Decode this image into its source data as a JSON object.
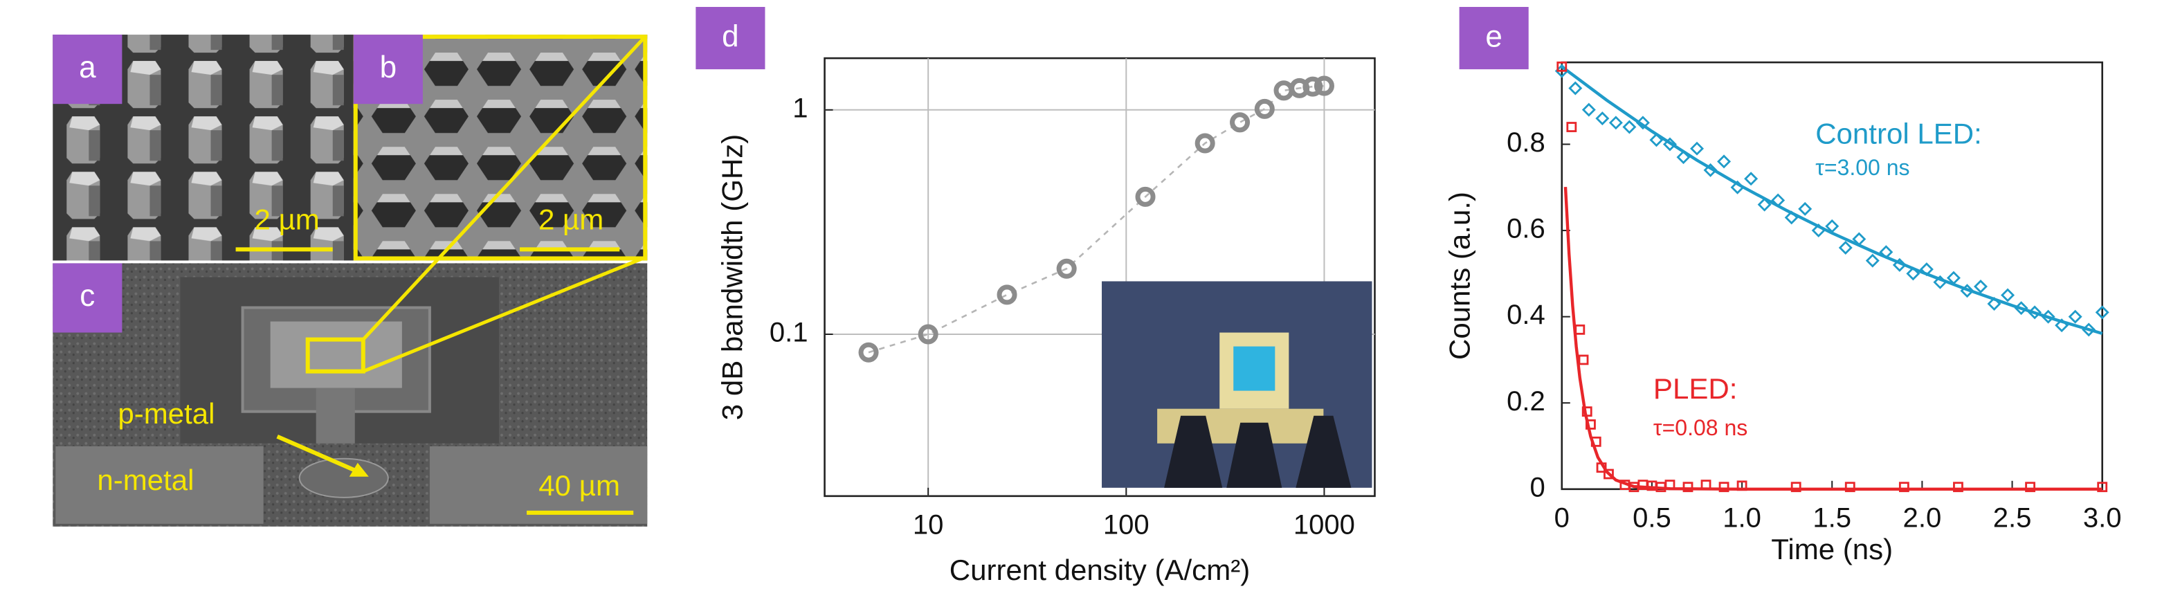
{
  "image_panels": [
    {
      "label": "a",
      "scale_bar": "2 µm"
    },
    {
      "label": "b",
      "scale_bar": "2 µm"
    },
    {
      "label": "c",
      "scale_bar": "40 µm",
      "annotations": [
        "p-metal",
        "n-metal"
      ]
    }
  ],
  "chart_data": [
    {
      "type": "scatter",
      "panel_label": "d",
      "xlabel": "Current density (A/cm²)",
      "ylabel": "3 dB bandwidth (GHz)",
      "xscale": "log",
      "yscale": "log",
      "grid": true,
      "line_style": "dashed",
      "x": [
        5,
        10,
        25,
        50,
        125,
        250,
        375,
        500,
        625,
        750,
        875,
        1000
      ],
      "series": [
        {
          "color": "#8c8c8c",
          "marker": "circle",
          "values": [
            0.083,
            0.1,
            0.15,
            0.196,
            0.41,
            0.71,
            0.88,
            1.01,
            1.22,
            1.25,
            1.27,
            1.28
          ]
        }
      ],
      "xlim": [
        3,
        1800
      ],
      "ylim": [
        0.019,
        1.7
      ],
      "xticks": [
        10,
        100,
        1000
      ],
      "yticks": [
        0.1,
        1
      ]
    },
    {
      "type": "scatter",
      "panel_label": "e",
      "xlabel": "Time (ns)",
      "ylabel": "Counts (a.u.)",
      "xscale": "linear",
      "yscale": "linear",
      "grid": false,
      "xlim": [
        0,
        3
      ],
      "ylim": [
        0,
        0.99
      ],
      "xticks": [
        0,
        0.5,
        {
          "value": 1,
          "label": "1.0"
        },
        1.5,
        {
          "value": 2,
          "label": "2.0"
        },
        2.5,
        {
          "value": 3,
          "label": "3.0"
        }
      ],
      "yticks": [
        0,
        0.2,
        0.4,
        0.6,
        0.8
      ],
      "series": [
        {
          "name": "Control LED:",
          "annotation": "τ=3.00 ns",
          "color": "#1f9bc9",
          "marker": "diamond",
          "x": [
            0,
            0.075,
            0.15,
            0.225,
            0.3,
            0.375,
            0.45,
            0.525,
            0.6,
            0.675,
            0.75,
            0.825,
            0.9,
            0.975,
            1.05,
            1.125,
            1.2,
            1.275,
            1.35,
            1.425,
            1.5,
            1.575,
            1.65,
            1.725,
            1.8,
            1.875,
            1.95,
            2.025,
            2.1,
            2.175,
            2.25,
            2.325,
            2.4,
            2.475,
            2.55,
            2.625,
            2.7,
            2.775,
            2.85,
            2.925,
            3.0
          ],
          "values": [
            0.97,
            0.93,
            0.88,
            0.86,
            0.85,
            0.84,
            0.85,
            0.81,
            0.8,
            0.77,
            0.79,
            0.74,
            0.76,
            0.7,
            0.72,
            0.66,
            0.67,
            0.63,
            0.65,
            0.6,
            0.61,
            0.56,
            0.58,
            0.53,
            0.55,
            0.52,
            0.5,
            0.51,
            0.48,
            0.49,
            0.46,
            0.47,
            0.43,
            0.45,
            0.42,
            0.41,
            0.4,
            0.38,
            0.4,
            0.37,
            0.41
          ],
          "fit": {
            "x": [
              0,
              0.25,
              0.5,
              0.75,
              1,
              1.25,
              1.5,
              1.75,
              2,
              2.25,
              2.5,
              2.75,
              3
            ],
            "values": [
              0.98,
              0.902,
              0.83,
              0.763,
              0.702,
              0.646,
              0.594,
              0.547,
              0.503,
              0.463,
              0.426,
              0.392,
              0.361
            ]
          }
        },
        {
          "name": "PLED:",
          "annotation": "τ=0.08 ns",
          "color": "#e8262a",
          "marker": "square",
          "x": [
            0,
            0.054,
            0.1,
            0.12,
            0.14,
            0.16,
            0.19,
            0.22,
            0.26,
            0.35,
            0.4,
            0.45,
            0.5,
            0.55,
            0.6,
            0.7,
            0.8,
            0.9,
            1.0,
            1.3,
            1.6,
            1.9,
            2.2,
            2.6,
            3.0
          ],
          "values": [
            0.98,
            0.84,
            0.37,
            0.3,
            0.18,
            0.15,
            0.11,
            0.05,
            0.035,
            0.01,
            0.005,
            0.01,
            0.008,
            0.005,
            0.01,
            0.005,
            0.01,
            0.005,
            0.008,
            0.005,
            0.005,
            0.005,
            0.005,
            0.005,
            0.005
          ],
          "fit": {
            "x": [
              0.02,
              0.04,
              0.06,
              0.08,
              0.1,
              0.13,
              0.16,
              0.2,
              0.25,
              0.3,
              0.4,
              0.6,
              1,
              2,
              3
            ],
            "values": [
              0.701,
              0.546,
              0.425,
              0.331,
              0.258,
              0.177,
              0.122,
              0.074,
              0.04,
              0.021,
              0.006,
              0.001,
              0,
              0,
              0
            ]
          }
        }
      ]
    }
  ]
}
